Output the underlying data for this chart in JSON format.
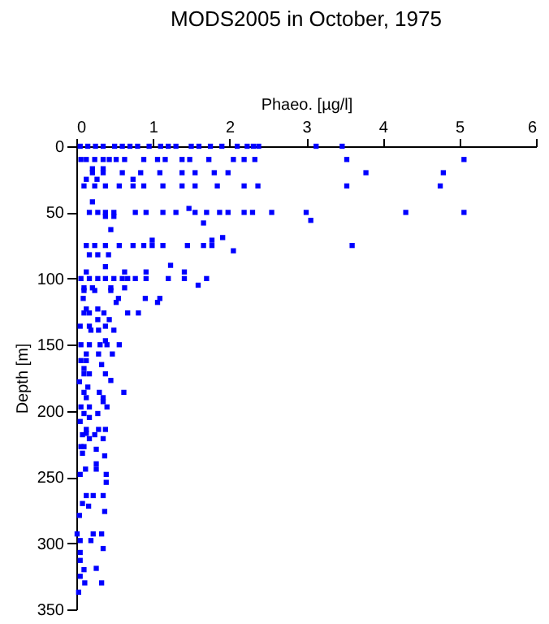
{
  "chart_data": {
    "type": "scatter",
    "title": "MODS2005 in October, 1975",
    "xlabel": "Phaeo. [µg/l]",
    "ylabel": "Depth [m]",
    "xlim": [
      0,
      6
    ],
    "xticks": [
      0,
      1,
      2,
      3,
      4,
      5,
      6
    ],
    "ylim": [
      350,
      0
    ],
    "yticks": [
      0,
      50,
      100,
      150,
      200,
      250,
      300,
      350
    ],
    "grid": false,
    "marker": "square",
    "color": "#0000ff",
    "x": [
      0.05,
      0.15,
      0.25,
      0.35,
      0.5,
      0.6,
      0.7,
      0.8,
      0.95,
      1.1,
      1.2,
      1.3,
      1.5,
      1.6,
      1.75,
      1.9,
      2.1,
      2.23,
      2.31,
      2.38,
      3.13,
      3.47,
      0.06,
      0.13,
      0.24,
      0.35,
      0.43,
      0.52,
      0.63,
      0.88,
      1.06,
      1.16,
      1.38,
      1.48,
      1.73,
      2.05,
      2.19,
      2.33,
      3.53,
      5.06,
      0.21,
      0.35,
      0.21,
      0.35,
      0.6,
      0.84,
      1.09,
      1.38,
      1.55,
      1.8,
      1.98,
      3.78,
      4.79,
      0.13,
      0.27,
      0.74,
      0.1,
      0.24,
      0.38,
      0.56,
      0.74,
      0.88,
      1.13,
      1.38,
      1.55,
      1.84,
      2.19,
      2.37,
      3.53,
      4.75,
      0.21,
      1.47,
      0.17,
      0.28,
      0.38,
      0.49,
      0.77,
      0.91,
      1.13,
      1.3,
      1.55,
      1.7,
      1.87,
      1.98,
      2.19,
      2.3,
      2.55,
      3.0,
      4.3,
      5.06,
      0.38,
      0.49,
      3.06,
      1.66,
      0.45,
      1.91,
      0.99,
      1.77,
      0.13,
      0.24,
      0.38,
      0.56,
      0.74,
      0.88,
      0.99,
      1.13,
      1.45,
      1.66,
      1.77,
      3.6,
      2.05,
      0.17,
      0.28,
      0.42,
      1.23,
      0.38,
      0.13,
      0.63,
      0.91,
      1.41,
      0.06,
      0.17,
      0.28,
      0.38,
      0.49,
      0.6,
      0.67,
      0.77,
      0.91,
      1.2,
      1.41,
      1.7,
      1.59,
      0.1,
      0.21,
      0.45,
      0.63,
      0.1,
      0.24,
      0.45,
      0.09,
      0.55,
      0.9,
      1.09,
      0.52,
      1.06,
      0.13,
      0.28,
      0.1,
      0.17,
      0.36,
      0.67,
      0.81,
      0.28,
      0.43,
      0.05,
      0.17,
      0.38,
      0.19,
      0.29,
      0.49,
      0.38,
      0.06,
      0.17,
      0.31,
      0.4,
      0.56,
      0.13,
      0.29,
      0.47,
      0.06,
      0.13,
      0.33,
      0.1,
      0.1,
      0.17,
      0.38,
      0.45,
      0.04,
      0.15,
      0.1,
      0.3,
      0.62,
      0.13,
      0.35,
      0.35,
      0.06,
      0.17,
      0.4,
      0.1,
      0.28,
      0.17,
      0.05,
      0.13,
      0.29,
      0.38,
      0.13,
      0.08,
      0.24,
      0.17,
      0.35,
      0.06,
      0.1,
      0.26,
      0.08,
      0.37,
      0.26,
      0.12,
      0.26,
      0.05,
      0.39,
      0.39,
      0.13,
      0.22,
      0.35,
      0.08,
      0.16,
      0.37,
      0.04,
      0.01,
      0.22,
      0.33,
      0.05,
      0.19,
      0.35,
      0.05,
      0.05,
      0.26,
      0.1,
      0.05,
      0.11,
      0.33,
      0.03
    ],
    "values": [
      0,
      0,
      0,
      0,
      0,
      0,
      0,
      0,
      0,
      0,
      0,
      0,
      0,
      0,
      0,
      0,
      0,
      0,
      0,
      0,
      0,
      0,
      10,
      10,
      10,
      10,
      10,
      10,
      10,
      10,
      10,
      10,
      10,
      10,
      10,
      10,
      10,
      10,
      10,
      10,
      17,
      17,
      20,
      20,
      20,
      20,
      20,
      20,
      20,
      20,
      20,
      20,
      20,
      25,
      25,
      25,
      30,
      30,
      30,
      30,
      30,
      30,
      30,
      30,
      30,
      30,
      30,
      30,
      30,
      30,
      42,
      47,
      50,
      50,
      50,
      50,
      50,
      50,
      50,
      50,
      50,
      50,
      50,
      50,
      50,
      50,
      50,
      50,
      50,
      50,
      53,
      53,
      56,
      58,
      63,
      69,
      71,
      71,
      75,
      75,
      75,
      75,
      75,
      75,
      75,
      75,
      75,
      75,
      75,
      75,
      79,
      82,
      82,
      82,
      90,
      91,
      95,
      95,
      95,
      95,
      100,
      100,
      100,
      100,
      100,
      100,
      100,
      100,
      100,
      100,
      100,
      100,
      105,
      107,
      107,
      107,
      107,
      109,
      109,
      109,
      115,
      115,
      115,
      115,
      118,
      118,
      123,
      123,
      126,
      126,
      126,
      126,
      126,
      131,
      131,
      136,
      136,
      136,
      139,
      139,
      139,
      147,
      150,
      150,
      150,
      150,
      150,
      157,
      157,
      157,
      162,
      162,
      165,
      168,
      172,
      172,
      172,
      177,
      178,
      182,
      186,
      186,
      186,
      190,
      190,
      193,
      197,
      197,
      197,
      202,
      202,
      205,
      208,
      214,
      214,
      214,
      217,
      218,
      218,
      221,
      221,
      227,
      227,
      229,
      232,
      234,
      240,
      244,
      244,
      248,
      248,
      254,
      264,
      264,
      264,
      270,
      272,
      276,
      279,
      293,
      293,
      293,
      298,
      298,
      304,
      307,
      313,
      319,
      320,
      325,
      330,
      330,
      337
    ]
  }
}
